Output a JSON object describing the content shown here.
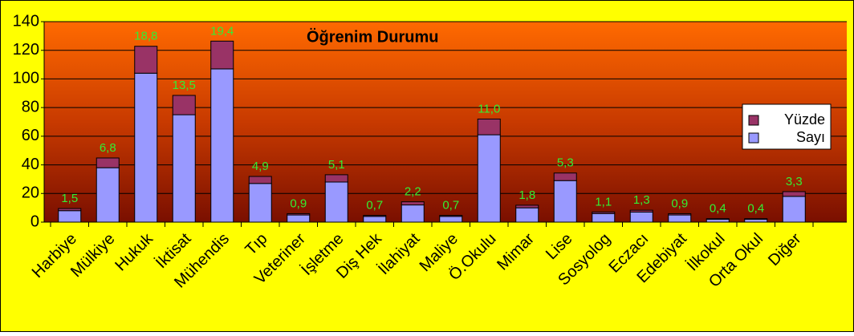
{
  "chart_data": {
    "type": "stacked_bar",
    "title": "Öğrenim Durumu",
    "categories": [
      "Harbiye",
      "Mülkiye",
      "Hukuk",
      "İktisat",
      "Mühendis",
      "Tıp",
      "Veteriner",
      "İşletme",
      "Diş Hek",
      "İlahiyat",
      "Maliye",
      "Ö.Okulu",
      "Mimar",
      "Lise",
      "Sosyolog",
      "Eczacı",
      "Edebiyat",
      "İlkokul",
      "Orta Okul",
      "Diğer"
    ],
    "series": [
      {
        "name": "Sayı",
        "color": "#9999ff",
        "values": [
          8,
          38,
          104,
          75,
          107,
          27,
          5,
          28,
          4,
          12,
          4,
          61,
          10,
          29,
          6,
          7,
          5,
          2,
          2,
          18
        ]
      },
      {
        "name": "Yüzde",
        "color": "#993366",
        "values": [
          1.5,
          6.8,
          18.8,
          13.5,
          19.4,
          4.9,
          0.9,
          5.1,
          0.7,
          2.2,
          0.7,
          11.0,
          1.8,
          5.3,
          1.1,
          1.3,
          0.9,
          0.4,
          0.4,
          3.3
        ],
        "value_labels": [
          "1,5",
          "6,8",
          "18,8",
          "13,5",
          "19,4",
          "4,9",
          "0,9",
          "5,1",
          "0,7",
          "2,2",
          "0,7",
          "11,0",
          "1,8",
          "5,3",
          "1,1",
          "1,3",
          "0,9",
          "0,4",
          "0,4",
          "3,3"
        ]
      }
    ],
    "ylim": [
      0,
      140
    ],
    "yticks": [
      0,
      20,
      40,
      60,
      80,
      100,
      120,
      140
    ],
    "grid": true,
    "legend": "right"
  }
}
